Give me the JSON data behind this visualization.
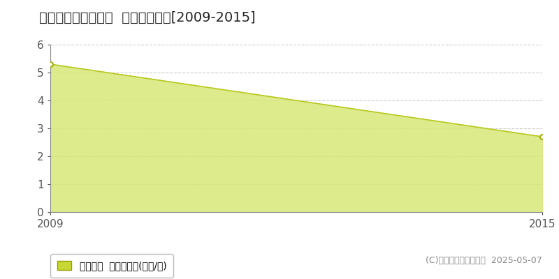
{
  "title": "中新川郡上市町幸町  土地価格推移[2009-2015]",
  "x_values": [
    2009,
    2015
  ],
  "y_values": [
    5.3,
    2.7
  ],
  "ylim": [
    0,
    6
  ],
  "xlim": [
    2009,
    2015
  ],
  "yticks": [
    0,
    1,
    2,
    3,
    4,
    5,
    6
  ],
  "xticks": [
    2009,
    2015
  ],
  "line_color": "#b8c820",
  "fill_color": "#d8e878",
  "fill_alpha": 0.85,
  "marker_color": "white",
  "marker_edge_color": "#a0b010",
  "grid_color": "#cccccc",
  "background_color": "#ffffff",
  "plot_bg_color": "#ffffff",
  "legend_label": "土地価格  平均坪単価(万円/坪)",
  "legend_marker_color": "#c8d832",
  "copyright_text": "(C)土地価格ドットコム  2025-05-07",
  "title_fontsize": 14,
  "tick_fontsize": 11,
  "legend_fontsize": 10,
  "copyright_fontsize": 9
}
